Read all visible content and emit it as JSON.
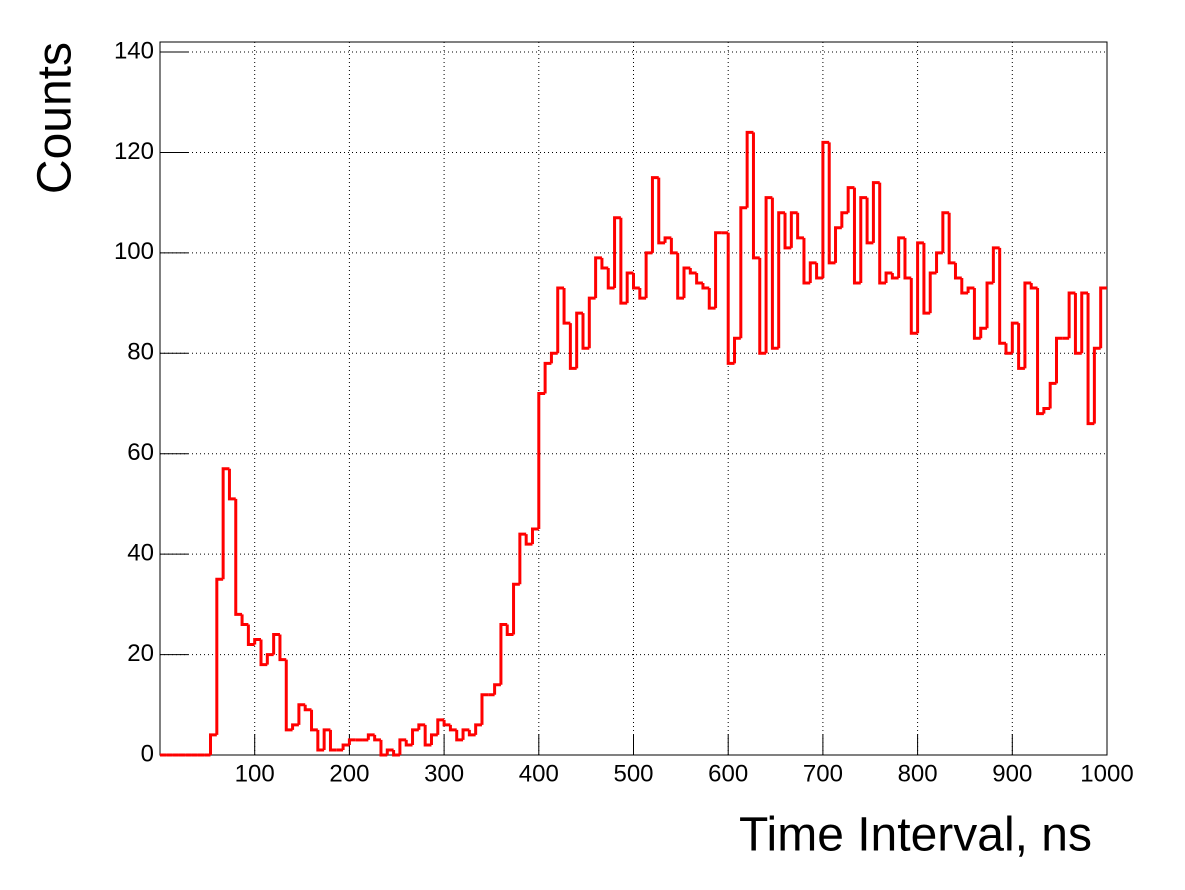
{
  "chart_data": {
    "type": "histogram",
    "x_label": "Time Interval, ns",
    "y_label": "Counts",
    "color": "#ff0000",
    "grid": true,
    "xlim": [
      0,
      1000
    ],
    "ylim": [
      0,
      142
    ],
    "xticks": [
      100,
      200,
      300,
      400,
      500,
      600,
      700,
      800,
      900,
      1000
    ],
    "yticks": [
      0,
      20,
      40,
      60,
      80,
      100,
      120,
      140
    ],
    "bins": [
      0,
      6.67,
      13.33,
      20,
      26.67,
      33.33,
      40,
      46.67,
      53.33,
      60,
      66.67,
      73.33,
      80,
      86.67,
      93.33,
      100,
      106.67,
      113.33,
      120,
      126.67,
      133.33,
      140,
      146.67,
      153.33,
      160,
      166.67,
      173.33,
      180,
      186.67,
      193.33,
      200,
      206.67,
      213.33,
      220,
      226.67,
      233.33,
      240,
      246.67,
      253.33,
      260,
      266.67,
      273.33,
      280,
      286.67,
      293.33,
      300,
      306.67,
      313.33,
      320,
      326.67,
      333.33,
      340,
      346.67,
      353.33,
      360,
      366.67,
      373.33,
      380,
      386.67,
      393.33,
      400,
      406.67,
      413.33,
      420,
      426.67,
      433.33,
      440,
      446.67,
      453.33,
      460,
      466.67,
      473.33,
      480,
      486.67,
      493.33,
      500,
      506.67,
      513.33,
      520,
      526.67,
      533.33,
      540,
      546.67,
      553.33,
      560,
      566.67,
      573.33,
      580,
      586.67,
      593.33,
      600,
      606.67,
      613.33,
      620,
      626.67,
      633.33,
      640,
      646.67,
      653.33,
      660,
      666.67,
      673.33,
      680,
      686.67,
      693.33,
      700,
      706.67,
      713.33,
      720,
      726.67,
      733.33,
      740,
      746.67,
      753.33,
      760,
      766.67,
      773.33,
      780,
      786.67,
      793.33,
      800,
      806.67,
      813.33,
      820,
      826.67,
      833.33,
      840,
      846.67,
      853.33,
      860,
      866.67,
      873.33,
      880,
      886.67,
      893.33,
      900,
      906.67,
      913.33,
      920,
      926.67,
      933.33,
      940,
      946.67,
      953.33,
      960,
      966.67,
      973.33,
      980,
      986.67,
      993.33,
      1000
    ],
    "values": [
      0,
      0,
      0,
      0,
      0,
      0,
      0,
      0,
      4,
      35,
      57,
      51,
      28,
      26,
      22,
      23,
      18,
      20,
      24,
      19,
      5,
      6,
      10,
      9,
      5,
      1,
      5,
      1,
      1,
      2,
      3,
      3,
      3,
      4,
      3,
      0,
      1,
      0,
      3,
      2,
      5,
      6,
      2,
      4,
      7,
      6,
      5,
      3,
      5,
      4,
      6,
      12,
      12,
      14,
      26,
      24,
      34,
      44,
      42,
      45,
      72,
      78,
      80,
      93,
      86,
      77,
      88,
      81,
      91,
      99,
      97,
      93,
      107,
      90,
      96,
      93,
      91,
      100,
      115,
      102,
      103,
      100,
      91,
      97,
      96,
      94,
      93,
      89,
      104,
      104,
      78,
      83,
      109,
      124,
      99,
      80,
      111,
      81,
      108,
      101,
      108,
      103,
      94,
      98,
      95,
      122,
      98,
      105,
      108,
      113,
      94,
      111,
      102,
      114,
      94,
      96,
      95,
      103,
      95,
      84,
      102,
      88,
      96,
      100,
      108,
      98,
      95,
      92,
      93,
      83,
      85,
      94,
      101,
      82,
      80,
      86,
      77,
      94,
      93,
      68,
      69,
      74,
      83,
      83,
      92,
      80,
      92,
      66,
      81,
      93
    ]
  }
}
